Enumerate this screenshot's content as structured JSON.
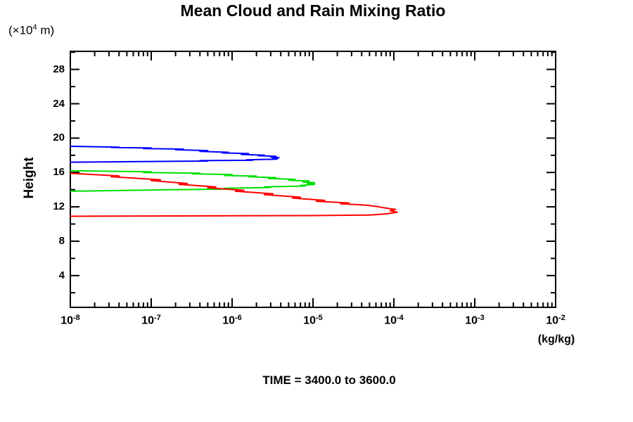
{
  "page": {
    "background": "#ffffff"
  },
  "chart_data": {
    "type": "line",
    "title": "Mean Cloud and Rain Mixing Ratio",
    "subtitle": "TIME = 3400.0 to 3600.0",
    "ylabel": "Height",
    "y_unit": {
      "pre": "(×10",
      "sup": "4",
      "post": " m)"
    },
    "xlabel_unit": "(kg/kg)",
    "legend": "none",
    "grid": false,
    "x_axis": {
      "scale": "log10",
      "min": 1e-08,
      "max": 0.01,
      "tick_label_base": "10",
      "decade_exponents": [
        -8,
        -7,
        -6,
        -5,
        -4,
        -3,
        -2
      ]
    },
    "y_axis": {
      "min": 0.3,
      "max": 30.1,
      "major_ticks": [
        4,
        8,
        12,
        16,
        20,
        24,
        28
      ],
      "minor_tick_step": 2
    },
    "series": [
      {
        "name": "blue-profile",
        "color": "#0000ff",
        "points": [
          [
            1e-08,
            19.05
          ],
          [
            4e-08,
            18.95
          ],
          [
            3.2e-08,
            18.9
          ],
          [
            1e-07,
            18.85
          ],
          [
            8e-08,
            18.78
          ],
          [
            2.5e-07,
            18.72
          ],
          [
            2e-07,
            18.65
          ],
          [
            5e-07,
            18.55
          ],
          [
            4e-07,
            18.45
          ],
          [
            9e-07,
            18.35
          ],
          [
            7.5e-07,
            18.28
          ],
          [
            1.6e-06,
            18.2
          ],
          [
            1.3e-06,
            18.1
          ],
          [
            2.5e-06,
            18.02
          ],
          [
            2.1e-06,
            17.95
          ],
          [
            3.5e-06,
            17.88
          ],
          [
            3e-06,
            17.8
          ],
          [
            3.8e-06,
            17.72
          ],
          [
            3.2e-06,
            17.62
          ],
          [
            3.6e-06,
            17.55
          ],
          [
            1.5e-06,
            17.48
          ],
          [
            1.8e-06,
            17.42
          ],
          [
            4e-07,
            17.38
          ],
          [
            5e-07,
            17.33
          ],
          [
            1e-07,
            17.28
          ],
          [
            1e-08,
            17.2
          ]
        ]
      },
      {
        "name": "green-profile",
        "color": "#00e000",
        "points": [
          [
            1e-08,
            16.2
          ],
          [
            1e-07,
            16.08
          ],
          [
            8e-08,
            16.0
          ],
          [
            4e-07,
            15.92
          ],
          [
            3.2e-07,
            15.85
          ],
          [
            1e-06,
            15.75
          ],
          [
            8e-07,
            15.65
          ],
          [
            2e-06,
            15.58
          ],
          [
            1.6e-06,
            15.5
          ],
          [
            3.5e-06,
            15.4
          ],
          [
            2.8e-06,
            15.3
          ],
          [
            6e-06,
            15.2
          ],
          [
            5e-06,
            15.1
          ],
          [
            9e-06,
            15.0
          ],
          [
            7.5e-06,
            14.9
          ],
          [
            1.05e-05,
            14.8
          ],
          [
            8.5e-06,
            14.7
          ],
          [
            1.05e-05,
            14.6
          ],
          [
            7e-06,
            14.5
          ],
          [
            8e-06,
            14.42
          ],
          [
            2.5e-06,
            14.32
          ],
          [
            3e-06,
            14.25
          ],
          [
            8e-07,
            14.15
          ],
          [
            1e-06,
            14.08
          ],
          [
            1.5e-07,
            13.98
          ],
          [
            1e-08,
            13.82
          ]
        ]
      },
      {
        "name": "red-profile",
        "color": "#ff0000",
        "points": [
          [
            1e-08,
            15.9
          ],
          [
            4e-08,
            15.6
          ],
          [
            3.2e-08,
            15.5
          ],
          [
            1.3e-07,
            15.15
          ],
          [
            1e-07,
            15.05
          ],
          [
            2.8e-07,
            14.72
          ],
          [
            2.2e-07,
            14.62
          ],
          [
            6.3e-07,
            14.32
          ],
          [
            5e-07,
            14.22
          ],
          [
            1.4e-06,
            13.92
          ],
          [
            1.1e-06,
            13.82
          ],
          [
            3.2e-06,
            13.52
          ],
          [
            2.5e-06,
            13.42
          ],
          [
            7e-06,
            13.12
          ],
          [
            5.6e-06,
            13.02
          ],
          [
            1.4e-05,
            12.75
          ],
          [
            1.1e-05,
            12.65
          ],
          [
            2.8e-05,
            12.45
          ],
          [
            2.2e-05,
            12.35
          ],
          [
            4.5e-05,
            12.2
          ],
          [
            6.3e-05,
            12.02
          ],
          [
            8e-05,
            11.85
          ],
          [
            0.000105,
            11.7
          ],
          [
            9e-05,
            11.55
          ],
          [
            0.00011,
            11.38
          ],
          [
            8e-05,
            11.18
          ],
          [
            5e-05,
            11.05
          ],
          [
            1e-05,
            10.98
          ],
          [
            1e-08,
            10.9
          ]
        ]
      }
    ]
  }
}
